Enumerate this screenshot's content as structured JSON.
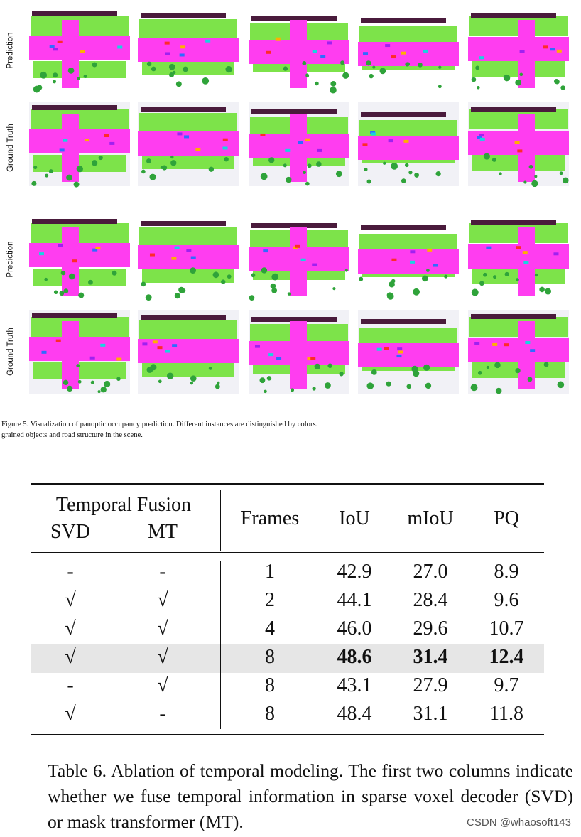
{
  "figure": {
    "row_labels": [
      "Prediction",
      "Ground Truth",
      "Prediction",
      "Ground Truth"
    ],
    "caption": "Figure 5.  Visualization of panoptic occupancy prediction.  Different instances are distinguished by colors.",
    "caption_line2": "grained objects and road structure in the scene.",
    "colors": {
      "road": "#ff3df0",
      "vegetation": "#7de34a",
      "tree": "#2fa33a",
      "building": "#4a1b3c",
      "car": "#2f6bff",
      "terrain": "#d8d8e6"
    }
  },
  "table": {
    "header": {
      "group": "Temporal Fusion",
      "svd": "SVD",
      "mt": "MT",
      "frames": "Frames",
      "iou": "IoU",
      "miou": "mIoU",
      "pq": "PQ"
    },
    "rows": [
      {
        "svd": "-",
        "mt": "-",
        "frames": "1",
        "iou": "42.9",
        "miou": "27.0",
        "pq": "8.9"
      },
      {
        "svd": "√",
        "mt": "√",
        "frames": "2",
        "iou": "44.1",
        "miou": "28.4",
        "pq": "9.6"
      },
      {
        "svd": "√",
        "mt": "√",
        "frames": "4",
        "iou": "46.0",
        "miou": "29.6",
        "pq": "10.7"
      },
      {
        "svd": "√",
        "mt": "√",
        "frames": "8",
        "iou": "48.6",
        "miou": "31.4",
        "pq": "12.4"
      },
      {
        "svd": "-",
        "mt": "√",
        "frames": "8",
        "iou": "43.1",
        "miou": "27.9",
        "pq": "9.7"
      },
      {
        "svd": "√",
        "mt": "-",
        "frames": "8",
        "iou": "48.4",
        "miou": "31.1",
        "pq": "11.8"
      }
    ],
    "caption": "Table 6.  Ablation of temporal modeling.  The first two columns indicate whether we fuse temporal information in sparse voxel decoder (SVD) or mask transformer (MT)."
  },
  "watermark": "CSDN @whaosoft143"
}
